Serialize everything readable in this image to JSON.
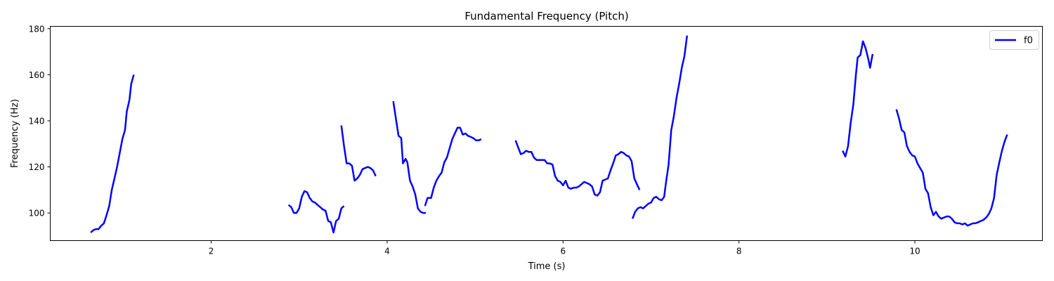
{
  "chart_data": {
    "type": "line",
    "title": "Fundamental Frequency (Pitch)",
    "xlabel": "Time (s)",
    "ylabel": "Frequency (Hz)",
    "xlim": [
      0.17,
      11.45
    ],
    "ylim": [
      88,
      181
    ],
    "xticks": [
      2,
      4,
      6,
      8,
      10
    ],
    "yticks": [
      100,
      120,
      140,
      160,
      180
    ],
    "grid": false,
    "legend_position": "top-right",
    "series": [
      {
        "name": "f0",
        "color": "#0000ff",
        "segments": [
          [
            [
              0.63,
              91.5
            ],
            [
              0.66,
              92.5
            ],
            [
              0.69,
              93
            ],
            [
              0.72,
              93
            ],
            [
              0.75,
              94.5
            ],
            [
              0.78,
              95.5
            ],
            [
              0.81,
              99
            ],
            [
              0.84,
              103
            ],
            [
              0.87,
              110
            ],
            [
              0.9,
              115
            ],
            [
              0.93,
              120
            ],
            [
              0.96,
              126
            ],
            [
              0.99,
              132
            ],
            [
              1.02,
              136
            ],
            [
              1.04,
              144
            ],
            [
              1.07,
              149
            ],
            [
              1.09,
              156
            ],
            [
              1.12,
              160
            ]
          ],
          [
            [
              2.88,
              103.5
            ],
            [
              2.91,
              102.5
            ],
            [
              2.94,
              100
            ],
            [
              2.97,
              100
            ],
            [
              3.0,
              102
            ],
            [
              3.03,
              107
            ],
            [
              3.06,
              109.5
            ],
            [
              3.09,
              109
            ],
            [
              3.12,
              106.5
            ],
            [
              3.15,
              105
            ],
            [
              3.18,
              104.5
            ],
            [
              3.21,
              103.5
            ],
            [
              3.24,
              102.5
            ],
            [
              3.27,
              101.5
            ],
            [
              3.3,
              101
            ],
            [
              3.33,
              96.5
            ],
            [
              3.36,
              96
            ],
            [
              3.39,
              91.5
            ],
            [
              3.42,
              96.5
            ],
            [
              3.45,
              97.5
            ],
            [
              3.48,
              102
            ],
            [
              3.51,
              103
            ]
          ],
          [
            [
              3.48,
              138
            ],
            [
              3.51,
              129
            ],
            [
              3.54,
              121.5
            ],
            [
              3.57,
              121.5
            ],
            [
              3.6,
              120.5
            ],
            [
              3.63,
              114
            ],
            [
              3.66,
              115
            ],
            [
              3.69,
              116.5
            ],
            [
              3.72,
              119
            ],
            [
              3.75,
              119.5
            ],
            [
              3.78,
              120
            ],
            [
              3.81,
              119.5
            ],
            [
              3.84,
              118.5
            ],
            [
              3.87,
              116
            ]
          ],
          [
            [
              4.07,
              148.5
            ],
            [
              4.1,
              141
            ],
            [
              4.13,
              133.5
            ],
            [
              4.16,
              132.5
            ],
            [
              4.18,
              121.5
            ],
            [
              4.21,
              123.5
            ],
            [
              4.23,
              122
            ],
            [
              4.26,
              114
            ],
            [
              4.29,
              111.5
            ],
            [
              4.32,
              108
            ],
            [
              4.35,
              102
            ],
            [
              4.38,
              100.5
            ],
            [
              4.41,
              100
            ],
            [
              4.44,
              100
            ]
          ],
          [
            [
              4.43,
              103
            ],
            [
              4.46,
              106.5
            ],
            [
              4.5,
              106.5
            ],
            [
              4.53,
              111
            ],
            [
              4.56,
              114
            ],
            [
              4.59,
              116
            ],
            [
              4.62,
              117.5
            ],
            [
              4.65,
              122
            ],
            [
              4.68,
              124
            ],
            [
              4.71,
              128
            ],
            [
              4.74,
              132
            ],
            [
              4.77,
              134.5
            ],
            [
              4.8,
              137
            ],
            [
              4.83,
              137
            ],
            [
              4.86,
              134
            ],
            [
              4.89,
              134.5
            ],
            [
              4.92,
              133.5
            ],
            [
              4.95,
              133
            ],
            [
              4.98,
              132.5
            ],
            [
              5.01,
              131.5
            ],
            [
              5.04,
              131.5
            ],
            [
              5.07,
              132
            ]
          ],
          [
            [
              5.46,
              131.5
            ],
            [
              5.49,
              128.5
            ],
            [
              5.52,
              125.5
            ],
            [
              5.55,
              126
            ],
            [
              5.58,
              127
            ],
            [
              5.61,
              126.5
            ],
            [
              5.64,
              126.5
            ],
            [
              5.67,
              124
            ],
            [
              5.7,
              123
            ],
            [
              5.73,
              123
            ],
            [
              5.76,
              123
            ],
            [
              5.79,
              123
            ],
            [
              5.82,
              121.5
            ],
            [
              5.85,
              121.5
            ],
            [
              5.88,
              121
            ],
            [
              5.91,
              116
            ],
            [
              5.94,
              114
            ],
            [
              5.97,
              113.5
            ],
            [
              6.0,
              112
            ],
            [
              6.03,
              114
            ],
            [
              6.06,
              111
            ],
            [
              6.09,
              110.5
            ],
            [
              6.12,
              111
            ],
            [
              6.15,
              111
            ],
            [
              6.18,
              111.5
            ],
            [
              6.21,
              112.5
            ],
            [
              6.24,
              113.5
            ],
            [
              6.27,
              113
            ],
            [
              6.3,
              112.5
            ],
            [
              6.33,
              111.5
            ],
            [
              6.36,
              108
            ],
            [
              6.39,
              107.5
            ],
            [
              6.42,
              109
            ],
            [
              6.45,
              114
            ],
            [
              6.48,
              114.5
            ],
            [
              6.51,
              115
            ],
            [
              6.54,
              118.5
            ],
            [
              6.57,
              121.5
            ],
            [
              6.6,
              125
            ],
            [
              6.63,
              125.5
            ],
            [
              6.66,
              126.5
            ],
            [
              6.69,
              126
            ],
            [
              6.72,
              125
            ],
            [
              6.75,
              124.5
            ],
            [
              6.78,
              122.5
            ],
            [
              6.81,
              115
            ],
            [
              6.84,
              112.5
            ],
            [
              6.87,
              110
            ]
          ],
          [
            [
              6.79,
              97.5
            ],
            [
              6.82,
              100.5
            ],
            [
              6.85,
              102
            ],
            [
              6.88,
              102.5
            ],
            [
              6.91,
              102
            ],
            [
              6.94,
              103
            ],
            [
              6.97,
              104
            ],
            [
              7.0,
              104.5
            ],
            [
              7.03,
              106.5
            ],
            [
              7.06,
              107
            ],
            [
              7.09,
              106
            ],
            [
              7.12,
              105.5
            ],
            [
              7.15,
              107
            ],
            [
              7.17,
              113
            ],
            [
              7.2,
              121
            ],
            [
              7.23,
              136
            ],
            [
              7.26,
              142
            ],
            [
              7.29,
              150
            ],
            [
              7.32,
              156
            ],
            [
              7.35,
              163
            ],
            [
              7.38,
              168
            ],
            [
              7.41,
              177
            ]
          ],
          [
            [
              9.18,
              127
            ],
            [
              9.21,
              124.5
            ],
            [
              9.24,
              129
            ],
            [
              9.27,
              139
            ],
            [
              9.3,
              147
            ],
            [
              9.33,
              160
            ],
            [
              9.35,
              167.5
            ],
            [
              9.38,
              168.5
            ],
            [
              9.41,
              174.5
            ],
            [
              9.44,
              171.5
            ],
            [
              9.47,
              167
            ],
            [
              9.49,
              163
            ],
            [
              9.52,
              169
            ]
          ],
          [
            [
              9.79,
              145
            ],
            [
              9.82,
              141
            ],
            [
              9.85,
              136
            ],
            [
              9.88,
              135
            ],
            [
              9.91,
              129
            ],
            [
              9.94,
              126.5
            ],
            [
              9.97,
              125
            ],
            [
              10.0,
              124.5
            ],
            [
              10.03,
              121.5
            ],
            [
              10.06,
              119.5
            ],
            [
              10.09,
              117.5
            ],
            [
              10.12,
              110.5
            ],
            [
              10.15,
              108.5
            ],
            [
              10.18,
              102.5
            ],
            [
              10.21,
              99
            ],
            [
              10.24,
              100.5
            ],
            [
              10.27,
              98.5
            ],
            [
              10.3,
              97.5
            ],
            [
              10.33,
              98
            ],
            [
              10.36,
              98.5
            ],
            [
              10.39,
              98.5
            ],
            [
              10.42,
              97.5
            ],
            [
              10.45,
              96
            ],
            [
              10.48,
              95.5
            ],
            [
              10.51,
              95.5
            ],
            [
              10.54,
              95
            ],
            [
              10.57,
              95.5
            ],
            [
              10.6,
              94.5
            ],
            [
              10.63,
              95
            ],
            [
              10.66,
              95.5
            ],
            [
              10.69,
              95.5
            ],
            [
              10.72,
              96
            ],
            [
              10.75,
              96.5
            ],
            [
              10.78,
              97
            ],
            [
              10.81,
              98
            ],
            [
              10.84,
              99.5
            ],
            [
              10.87,
              102
            ],
            [
              10.9,
              106.5
            ],
            [
              10.93,
              116.5
            ],
            [
              10.96,
              122
            ],
            [
              10.99,
              127
            ],
            [
              11.02,
              131
            ],
            [
              11.05,
              134
            ]
          ]
        ]
      }
    ]
  }
}
